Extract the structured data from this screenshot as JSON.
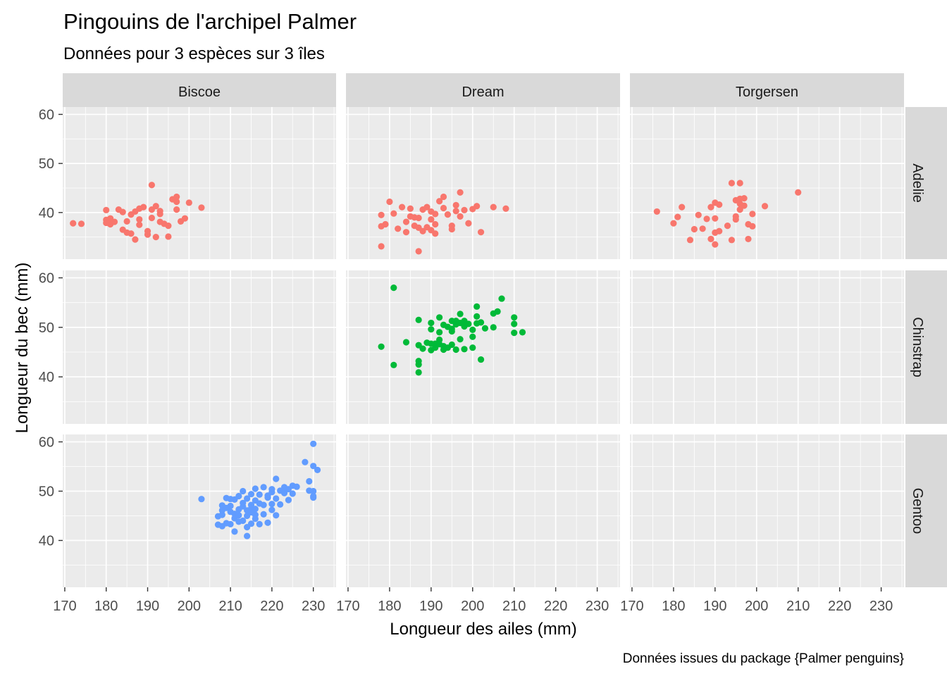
{
  "chart_data": {
    "type": "scatter",
    "title": "Pingouins de l'archipel Palmer",
    "subtitle": "Données pour 3 espèces sur 3 îles",
    "xlabel": "Longueur des ailes (mm)",
    "ylabel": "Longueur du bec (mm)",
    "caption": "Données issues du package {Palmer penguins}",
    "xlim": [
      169.5,
      235.5
    ],
    "ylim": [
      30.5,
      61.5
    ],
    "x_ticks": [
      170,
      180,
      190,
      200,
      210,
      220,
      230
    ],
    "y_ticks": [
      40,
      50,
      60
    ],
    "grid": true,
    "facet_columns": [
      "Biscoe",
      "Dream",
      "Torgersen"
    ],
    "facet_rows": [
      "Adelie",
      "Chinstrap",
      "Gentoo"
    ],
    "colors": {
      "Adelie": "#F8766D",
      "Chinstrap": "#00BA38",
      "Gentoo": "#619CFF"
    },
    "series": [
      {
        "island": "Biscoe",
        "species": "Adelie",
        "points": [
          [
            172,
            37.8
          ],
          [
            174,
            37.7
          ],
          [
            180,
            40.5
          ],
          [
            180,
            38.5
          ],
          [
            180,
            37.9
          ],
          [
            181,
            37.6
          ],
          [
            181,
            38.8
          ],
          [
            182,
            38.1
          ],
          [
            183,
            40.6
          ],
          [
            184,
            36.5
          ],
          [
            184,
            40.1
          ],
          [
            185,
            35.9
          ],
          [
            185,
            38.2
          ],
          [
            186,
            39.6
          ],
          [
            186,
            35.7
          ],
          [
            187,
            40.2
          ],
          [
            187,
            34.5
          ],
          [
            188,
            40.8
          ],
          [
            188,
            37.5
          ],
          [
            188,
            38.6
          ],
          [
            189,
            41.1
          ],
          [
            190,
            36.2
          ],
          [
            190,
            35.5
          ],
          [
            191,
            45.6
          ],
          [
            191,
            40.6
          ],
          [
            191,
            38.9
          ],
          [
            192,
            35.0
          ],
          [
            192,
            41.3
          ],
          [
            193,
            40.3
          ],
          [
            193,
            39.7
          ],
          [
            193,
            38.1
          ],
          [
            194,
            37.7
          ],
          [
            195,
            35.1
          ],
          [
            195,
            37.3
          ],
          [
            196,
            42.7
          ],
          [
            197,
            42.2
          ],
          [
            197,
            40.6
          ],
          [
            197,
            43.2
          ],
          [
            198,
            38.2
          ],
          [
            199,
            38.8
          ],
          [
            200,
            42.0
          ],
          [
            203,
            41.0
          ]
        ]
      },
      {
        "island": "Dream",
        "species": "Adelie",
        "points": [
          [
            178,
            39.5
          ],
          [
            178,
            33.1
          ],
          [
            178,
            37.2
          ],
          [
            179,
            37.6
          ],
          [
            180,
            42.2
          ],
          [
            181,
            39.8
          ],
          [
            182,
            36.7
          ],
          [
            183,
            41.1
          ],
          [
            184,
            36.0
          ],
          [
            184,
            38.1
          ],
          [
            185,
            40.8
          ],
          [
            185,
            39.2
          ],
          [
            186,
            39.0
          ],
          [
            186,
            37.3
          ],
          [
            187,
            36.9
          ],
          [
            187,
            38.9
          ],
          [
            188,
            40.6
          ],
          [
            188,
            36.2
          ],
          [
            189,
            41.1
          ],
          [
            189,
            37.0
          ],
          [
            190,
            40.2
          ],
          [
            190,
            38.6
          ],
          [
            190,
            36.4
          ],
          [
            191,
            39.7
          ],
          [
            191,
            35.7
          ],
          [
            191,
            37.6
          ],
          [
            192,
            42.3
          ],
          [
            193,
            40.9
          ],
          [
            193,
            43.2
          ],
          [
            194,
            39.6
          ],
          [
            195,
            36.6
          ],
          [
            195,
            37.3
          ],
          [
            196,
            40.3
          ],
          [
            196,
            41.5
          ],
          [
            197,
            44.1
          ],
          [
            197,
            39.2
          ],
          [
            198,
            40.5
          ],
          [
            199,
            37.8
          ],
          [
            200,
            40.7
          ],
          [
            201,
            41.3
          ],
          [
            202,
            36.0
          ],
          [
            205,
            41.1
          ],
          [
            208,
            40.8
          ],
          [
            187,
            32.1
          ]
        ]
      },
      {
        "island": "Torgersen",
        "species": "Adelie",
        "points": [
          [
            176,
            40.2
          ],
          [
            180,
            37.8
          ],
          [
            181,
            39.1
          ],
          [
            182,
            41.1
          ],
          [
            184,
            34.4
          ],
          [
            185,
            36.6
          ],
          [
            186,
            39.5
          ],
          [
            187,
            36.7
          ],
          [
            188,
            38.7
          ],
          [
            189,
            34.6
          ],
          [
            189,
            41.1
          ],
          [
            190,
            35.9
          ],
          [
            190,
            42.0
          ],
          [
            190,
            38.8
          ],
          [
            190,
            33.5
          ],
          [
            191,
            36.2
          ],
          [
            191,
            41.6
          ],
          [
            193,
            37.3
          ],
          [
            194,
            46.0
          ],
          [
            194,
            34.4
          ],
          [
            195,
            42.5
          ],
          [
            195,
            39.2
          ],
          [
            195,
            38.6
          ],
          [
            196,
            41.8
          ],
          [
            196,
            42.8
          ],
          [
            196,
            40.6
          ],
          [
            196,
            46.0
          ],
          [
            197,
            42.9
          ],
          [
            197,
            41.4
          ],
          [
            198,
            37.6
          ],
          [
            198,
            34.6
          ],
          [
            199,
            37.2
          ],
          [
            199,
            39.7
          ],
          [
            202,
            41.3
          ],
          [
            210,
            44.1
          ]
        ]
      },
      {
        "island": "Dream",
        "species": "Chinstrap",
        "points": [
          [
            178,
            46.1
          ],
          [
            181,
            58.0
          ],
          [
            181,
            42.4
          ],
          [
            184,
            47.0
          ],
          [
            187,
            42.5
          ],
          [
            187,
            43.2
          ],
          [
            187,
            51.5
          ],
          [
            187,
            46.4
          ],
          [
            187,
            40.9
          ],
          [
            188,
            45.7
          ],
          [
            189,
            46.9
          ],
          [
            190,
            46.7
          ],
          [
            190,
            49.6
          ],
          [
            190,
            50.9
          ],
          [
            190,
            45.4
          ],
          [
            191,
            45.9
          ],
          [
            191,
            46.7
          ],
          [
            192,
            47.5
          ],
          [
            192,
            52.0
          ],
          [
            192,
            49.0
          ],
          [
            192,
            46.6
          ],
          [
            193,
            50.5
          ],
          [
            193,
            46.2
          ],
          [
            193,
            45.5
          ],
          [
            194,
            50.1
          ],
          [
            194,
            45.9
          ],
          [
            195,
            49.7
          ],
          [
            195,
            51.3
          ],
          [
            195,
            46.5
          ],
          [
            195,
            49.2
          ],
          [
            196,
            50.6
          ],
          [
            196,
            51.3
          ],
          [
            196,
            45.5
          ],
          [
            197,
            50.9
          ],
          [
            197,
            52.7
          ],
          [
            197,
            47.6
          ],
          [
            198,
            50.2
          ],
          [
            198,
            45.6
          ],
          [
            198,
            51.3
          ],
          [
            199,
            50.7
          ],
          [
            200,
            45.9
          ],
          [
            200,
            48.1
          ],
          [
            200,
            49.5
          ],
          [
            201,
            50.8
          ],
          [
            201,
            52.2
          ],
          [
            201,
            54.2
          ],
          [
            202,
            51.0
          ],
          [
            202,
            43.5
          ],
          [
            203,
            49.8
          ],
          [
            205,
            52.8
          ],
          [
            205,
            50.0
          ],
          [
            206,
            53.2
          ],
          [
            207,
            55.8
          ],
          [
            210,
            48.9
          ],
          [
            210,
            52.0
          ],
          [
            210,
            50.7
          ],
          [
            212,
            49.0
          ]
        ]
      },
      {
        "island": "Biscoe",
        "species": "Gentoo",
        "points": [
          [
            203,
            48.4
          ],
          [
            207,
            44.9
          ],
          [
            207,
            43.2
          ],
          [
            208,
            46.1
          ],
          [
            208,
            42.9
          ],
          [
            208,
            45.2
          ],
          [
            208,
            47.1
          ],
          [
            209,
            48.6
          ],
          [
            209,
            43.5
          ],
          [
            209,
            46.6
          ],
          [
            210,
            45.8
          ],
          [
            210,
            43.3
          ],
          [
            210,
            47.0
          ],
          [
            210,
            48.4
          ],
          [
            211,
            41.8
          ],
          [
            211,
            45.4
          ],
          [
            211,
            48.3
          ],
          [
            211,
            44.5
          ],
          [
            212,
            46.3
          ],
          [
            212,
            49.0
          ],
          [
            212,
            45.1
          ],
          [
            212,
            43.8
          ],
          [
            213,
            46.9
          ],
          [
            213,
            50.0
          ],
          [
            213,
            44.0
          ],
          [
            213,
            47.6
          ],
          [
            214,
            45.0
          ],
          [
            214,
            48.5
          ],
          [
            214,
            42.7
          ],
          [
            214,
            46.1
          ],
          [
            214,
            40.9
          ],
          [
            215,
            46.5
          ],
          [
            215,
            49.4
          ],
          [
            215,
            43.4
          ],
          [
            215,
            47.2
          ],
          [
            215,
            45.7
          ],
          [
            216,
            50.5
          ],
          [
            216,
            45.2
          ],
          [
            216,
            46.4
          ],
          [
            216,
            48.1
          ],
          [
            216,
            44.4
          ],
          [
            217,
            47.5
          ],
          [
            217,
            49.3
          ],
          [
            217,
            43.3
          ],
          [
            218,
            45.3
          ],
          [
            218,
            50.8
          ],
          [
            218,
            47.2
          ],
          [
            219,
            49.1
          ],
          [
            219,
            43.6
          ],
          [
            219,
            48.7
          ],
          [
            220,
            50.4
          ],
          [
            220,
            46.2
          ],
          [
            220,
            47.4
          ],
          [
            220,
            49.8
          ],
          [
            221,
            45.1
          ],
          [
            221,
            52.5
          ],
          [
            221,
            48.5
          ],
          [
            222,
            50.1
          ],
          [
            222,
            47.3
          ],
          [
            223,
            50.8
          ],
          [
            223,
            49.6
          ],
          [
            224,
            48.2
          ],
          [
            224,
            50.4
          ],
          [
            225,
            51.1
          ],
          [
            225,
            49.5
          ],
          [
            226,
            50.9
          ],
          [
            228,
            55.9
          ],
          [
            229,
            50.1
          ],
          [
            229,
            52.0
          ],
          [
            230,
            59.6
          ],
          [
            230,
            50.0
          ],
          [
            230,
            49.0
          ],
          [
            230,
            48.7
          ],
          [
            230,
            55.1
          ],
          [
            231,
            54.3
          ]
        ]
      }
    ]
  }
}
